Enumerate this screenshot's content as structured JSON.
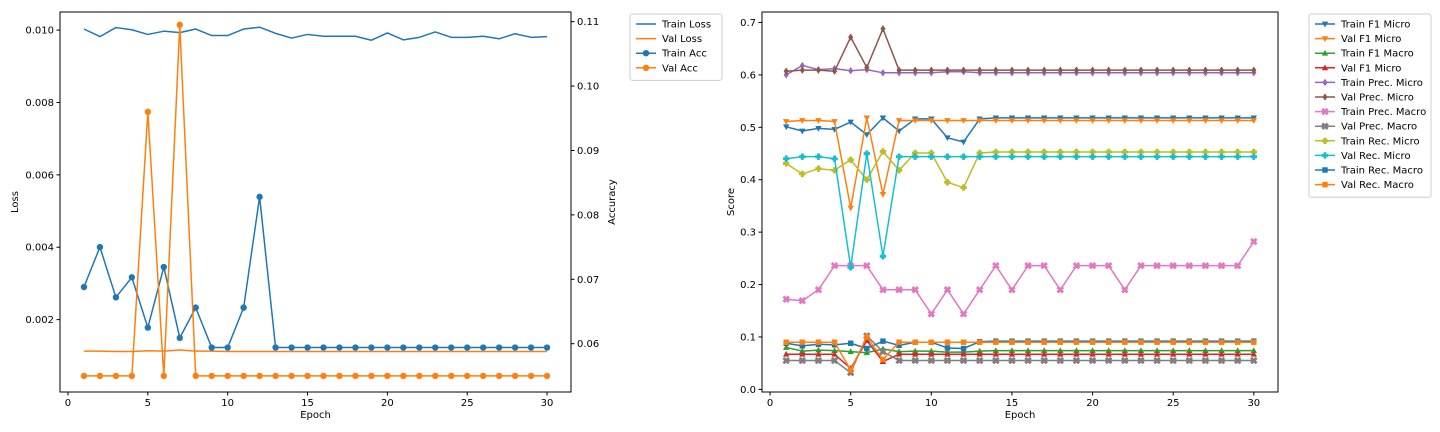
{
  "chart_data": [
    {
      "type": "line",
      "xlabel": "Epoch",
      "ylabel": "Loss",
      "y2label": "Accuracy",
      "xlim": [
        -0.5,
        31.5
      ],
      "ylim": [
        0.0,
        0.0105
      ],
      "y2lim": [
        0.0525,
        0.1115
      ],
      "x_ticks": [
        0,
        5,
        10,
        15,
        20,
        25,
        30
      ],
      "y_ticks": [
        0.002,
        0.004,
        0.006,
        0.008,
        0.01
      ],
      "y_tick_labels": [
        "0.002",
        "0.004",
        "0.006",
        "0.008",
        "0.010"
      ],
      "y2_ticks": [
        0.06,
        0.07,
        0.08,
        0.09,
        0.1,
        0.11
      ],
      "y2_tick_labels": [
        "0.06",
        "0.07",
        "0.08",
        "0.09",
        "0.10",
        "0.11"
      ],
      "legend_position": "outside-right-top",
      "grid": false,
      "x": [
        1,
        2,
        3,
        4,
        5,
        6,
        7,
        8,
        9,
        10,
        11,
        12,
        13,
        14,
        15,
        16,
        17,
        18,
        19,
        20,
        21,
        22,
        23,
        24,
        25,
        26,
        27,
        28,
        29,
        30
      ],
      "series": [
        {
          "name": "Train Loss",
          "axis": "left",
          "color": "#1f77b4",
          "marker": "none",
          "values": [
            0.01003,
            0.00982,
            0.01007,
            0.01001,
            0.00988,
            0.00997,
            0.00993,
            0.01003,
            0.00985,
            0.00985,
            0.01003,
            0.01008,
            0.00991,
            0.00978,
            0.00988,
            0.00983,
            0.00983,
            0.00983,
            0.00972,
            0.00992,
            0.00973,
            0.0098,
            0.00995,
            0.0098,
            0.0098,
            0.00983,
            0.00976,
            0.0099,
            0.0098,
            0.00982
          ]
        },
        {
          "name": "Val Loss",
          "axis": "left",
          "color": "#ff7f0e",
          "marker": "none",
          "values": [
            0.00113,
            0.00113,
            0.00112,
            0.00112,
            0.00114,
            0.00113,
            0.00116,
            0.00113,
            0.00113,
            0.00112,
            0.00112,
            0.00112,
            0.00112,
            0.00112,
            0.00112,
            0.00112,
            0.00112,
            0.00112,
            0.00112,
            0.00112,
            0.00112,
            0.00112,
            0.00112,
            0.00112,
            0.00112,
            0.00112,
            0.00112,
            0.00112,
            0.00112,
            0.00112
          ]
        },
        {
          "name": "Train Acc",
          "axis": "right",
          "color": "#1f77b4",
          "marker": "circle",
          "values": [
            0.0688,
            0.075,
            0.0672,
            0.0703,
            0.0625,
            0.0719,
            0.0609,
            0.0656,
            0.0594,
            0.0594,
            0.0656,
            0.0828,
            0.0594,
            0.0594,
            0.0594,
            0.0594,
            0.0594,
            0.0594,
            0.0594,
            0.0594,
            0.0594,
            0.0594,
            0.0594,
            0.0594,
            0.0594,
            0.0594,
            0.0594,
            0.0594,
            0.0594,
            0.0594
          ]
        },
        {
          "name": "Val Acc",
          "axis": "right",
          "color": "#ff7f0e",
          "marker": "circle",
          "values": [
            0.055,
            0.055,
            0.055,
            0.055,
            0.096,
            0.055,
            0.1095,
            0.055,
            0.055,
            0.055,
            0.055,
            0.055,
            0.055,
            0.055,
            0.055,
            0.055,
            0.055,
            0.055,
            0.055,
            0.055,
            0.055,
            0.055,
            0.055,
            0.055,
            0.055,
            0.055,
            0.055,
            0.055,
            0.055,
            0.055
          ]
        }
      ]
    },
    {
      "type": "line",
      "xlabel": "Epoch",
      "ylabel": "Score",
      "xlim": [
        -0.5,
        31.5
      ],
      "ylim": [
        -0.005,
        0.72
      ],
      "x_ticks": [
        0,
        5,
        10,
        15,
        20,
        25,
        30
      ],
      "y_ticks": [
        0.0,
        0.1,
        0.2,
        0.3,
        0.4,
        0.5,
        0.6,
        0.7
      ],
      "y_tick_labels": [
        "0.0",
        "0.1",
        "0.2",
        "0.3",
        "0.4",
        "0.5",
        "0.6",
        "0.7"
      ],
      "legend_position": "outside-right-top",
      "grid": false,
      "x": [
        1,
        2,
        3,
        4,
        5,
        6,
        7,
        8,
        9,
        10,
        11,
        12,
        13,
        14,
        15,
        16,
        17,
        18,
        19,
        20,
        21,
        22,
        23,
        24,
        25,
        26,
        27,
        28,
        29,
        30
      ],
      "series": [
        {
          "name": "Train F1 Micro",
          "color": "#1f77b4",
          "marker": "triangle-down",
          "values": [
            0.501,
            0.493,
            0.498,
            0.496,
            0.51,
            0.486,
            0.518,
            0.493,
            0.516,
            0.516,
            0.48,
            0.472,
            0.516,
            0.518,
            0.518,
            0.518,
            0.518,
            0.518,
            0.518,
            0.518,
            0.518,
            0.518,
            0.518,
            0.518,
            0.518,
            0.518,
            0.518,
            0.518,
            0.518,
            0.518
          ]
        },
        {
          "name": "Val F1 Micro",
          "color": "#ff7f0e",
          "marker": "triangle-down",
          "values": [
            0.511,
            0.513,
            0.513,
            0.511,
            0.346,
            0.518,
            0.372,
            0.513,
            0.513,
            0.513,
            0.513,
            0.513,
            0.513,
            0.513,
            0.513,
            0.513,
            0.513,
            0.513,
            0.513,
            0.513,
            0.513,
            0.513,
            0.513,
            0.513,
            0.513,
            0.513,
            0.513,
            0.513,
            0.513,
            0.513
          ]
        },
        {
          "name": "Train F1 Macro",
          "color": "#2ca02c",
          "marker": "triangle-up",
          "values": [
            0.08,
            0.073,
            0.075,
            0.074,
            0.072,
            0.07,
            0.077,
            0.072,
            0.073,
            0.073,
            0.071,
            0.071,
            0.073,
            0.074,
            0.074,
            0.074,
            0.074,
            0.074,
            0.074,
            0.074,
            0.074,
            0.074,
            0.074,
            0.074,
            0.074,
            0.074,
            0.074,
            0.074,
            0.074,
            0.074
          ]
        },
        {
          "name": "Val F1 Micro",
          "color": "#d62728",
          "marker": "triangle-up",
          "values": [
            0.067,
            0.067,
            0.067,
            0.067,
            0.04,
            0.093,
            0.053,
            0.067,
            0.067,
            0.067,
            0.067,
            0.067,
            0.067,
            0.067,
            0.067,
            0.067,
            0.067,
            0.067,
            0.067,
            0.067,
            0.067,
            0.067,
            0.067,
            0.067,
            0.067,
            0.067,
            0.067,
            0.067,
            0.067,
            0.067
          ]
        },
        {
          "name": "Train Prec. Micro",
          "color": "#9467bd",
          "marker": "diamond",
          "values": [
            0.6,
            0.618,
            0.61,
            0.612,
            0.608,
            0.61,
            0.604,
            0.604,
            0.604,
            0.604,
            0.606,
            0.606,
            0.604,
            0.604,
            0.604,
            0.604,
            0.604,
            0.604,
            0.604,
            0.604,
            0.604,
            0.604,
            0.604,
            0.604,
            0.604,
            0.604,
            0.604,
            0.604,
            0.604,
            0.604
          ]
        },
        {
          "name": "Val Prec. Micro",
          "color": "#8c564b",
          "marker": "diamond",
          "values": [
            0.607,
            0.609,
            0.609,
            0.607,
            0.672,
            0.614,
            0.688,
            0.609,
            0.609,
            0.609,
            0.609,
            0.609,
            0.609,
            0.609,
            0.609,
            0.609,
            0.609,
            0.609,
            0.609,
            0.609,
            0.609,
            0.609,
            0.609,
            0.609,
            0.609,
            0.609,
            0.609,
            0.609,
            0.609,
            0.609
          ]
        },
        {
          "name": "Train Prec. Macro",
          "color": "#e377c2",
          "marker": "x-filled",
          "values": [
            0.172,
            0.169,
            0.19,
            0.236,
            0.236,
            0.236,
            0.19,
            0.19,
            0.19,
            0.144,
            0.19,
            0.144,
            0.19,
            0.236,
            0.19,
            0.236,
            0.236,
            0.19,
            0.236,
            0.236,
            0.236,
            0.19,
            0.236,
            0.236,
            0.236,
            0.236,
            0.236,
            0.236,
            0.236,
            0.282
          ]
        },
        {
          "name": "Val Prec. Macro",
          "color": "#7f7f7f",
          "marker": "x-filled",
          "values": [
            0.055,
            0.055,
            0.055,
            0.055,
            0.032,
            0.102,
            0.072,
            0.055,
            0.055,
            0.055,
            0.055,
            0.055,
            0.055,
            0.055,
            0.055,
            0.055,
            0.055,
            0.055,
            0.055,
            0.055,
            0.055,
            0.055,
            0.055,
            0.055,
            0.055,
            0.055,
            0.055,
            0.055,
            0.055,
            0.055
          ]
        },
        {
          "name": "Train Rec. Micro",
          "color": "#bcbd22",
          "marker": "plus",
          "values": [
            0.431,
            0.411,
            0.421,
            0.418,
            0.438,
            0.4,
            0.454,
            0.418,
            0.451,
            0.451,
            0.395,
            0.385,
            0.451,
            0.453,
            0.453,
            0.453,
            0.453,
            0.453,
            0.453,
            0.453,
            0.453,
            0.453,
            0.453,
            0.453,
            0.453,
            0.453,
            0.453,
            0.453,
            0.453,
            0.453
          ]
        },
        {
          "name": "Val Rec. Micro",
          "color": "#17becf",
          "marker": "plus",
          "values": [
            0.44,
            0.444,
            0.444,
            0.44,
            0.233,
            0.45,
            0.254,
            0.444,
            0.444,
            0.444,
            0.444,
            0.444,
            0.444,
            0.444,
            0.444,
            0.444,
            0.444,
            0.444,
            0.444,
            0.444,
            0.444,
            0.444,
            0.444,
            0.444,
            0.444,
            0.444,
            0.444,
            0.444,
            0.444,
            0.444
          ]
        },
        {
          "name": "Train Rec. Macro",
          "color": "#1f77b4",
          "marker": "square",
          "values": [
            0.088,
            0.083,
            0.086,
            0.085,
            0.088,
            0.078,
            0.092,
            0.084,
            0.09,
            0.09,
            0.079,
            0.078,
            0.091,
            0.092,
            0.092,
            0.092,
            0.092,
            0.092,
            0.092,
            0.092,
            0.092,
            0.092,
            0.092,
            0.092,
            0.092,
            0.092,
            0.092,
            0.092,
            0.092,
            0.092
          ]
        },
        {
          "name": "Val Rec. Macro",
          "color": "#ff7f0e",
          "marker": "square",
          "values": [
            0.09,
            0.09,
            0.09,
            0.09,
            0.037,
            0.1,
            0.057,
            0.09,
            0.09,
            0.09,
            0.09,
            0.09,
            0.09,
            0.09,
            0.09,
            0.09,
            0.09,
            0.09,
            0.09,
            0.09,
            0.09,
            0.09,
            0.09,
            0.09,
            0.09,
            0.09,
            0.09,
            0.09,
            0.09,
            0.09
          ]
        }
      ]
    }
  ]
}
